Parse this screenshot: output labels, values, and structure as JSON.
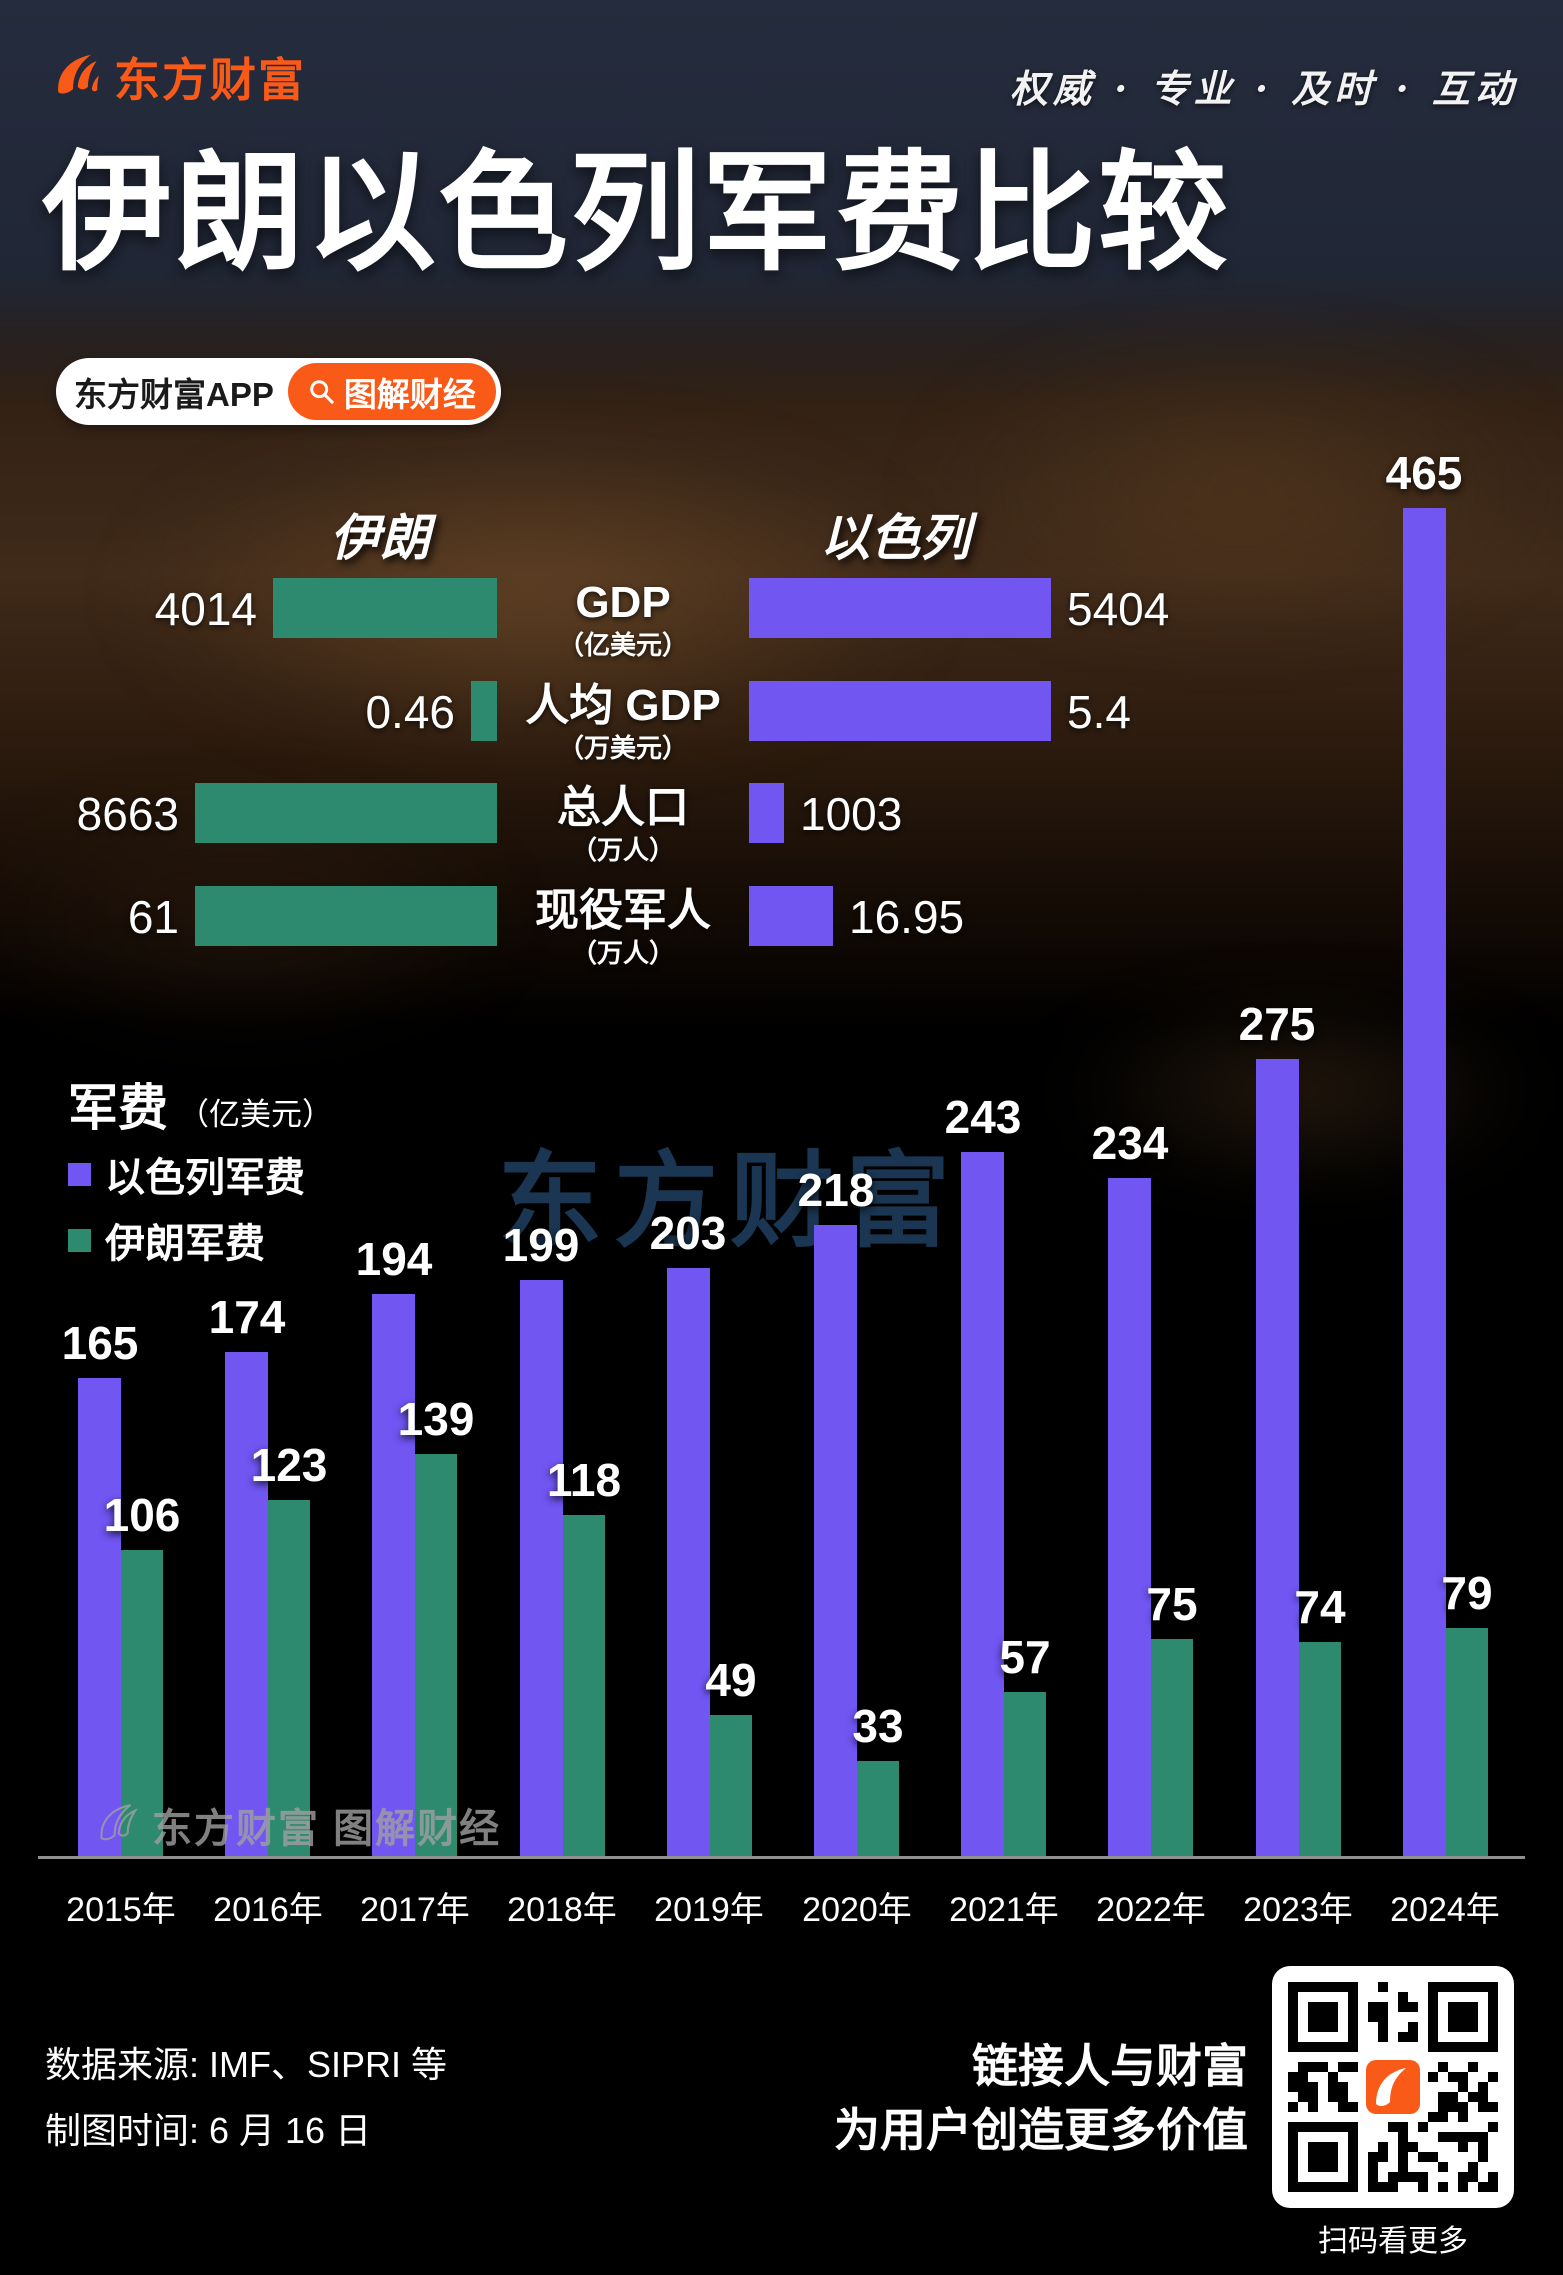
{
  "brand": {
    "logo_text": "东方财富",
    "tagline": "权威 · 专业 · 及时 · 互动",
    "app_pill": "东方财富APP",
    "pill_button": "图解财经",
    "watermark_center": "东方财富",
    "watermark_bottom": "东方财富 图解财经"
  },
  "title": "伊朗以色列军费比较",
  "comparison": {
    "iran_header": "伊朗",
    "israel_header": "以色列",
    "rows": [
      {
        "label": "GDP",
        "unit": "（亿美元）",
        "iran": 4014,
        "israel": 5404
      },
      {
        "label": "人均 GDP",
        "unit": "（万美元）",
        "iran": 0.46,
        "israel": 5.4
      },
      {
        "label": "总人口",
        "unit": "（万人）",
        "iran": 8663,
        "israel": 1003
      },
      {
        "label": "现役军人",
        "unit": "（万人）",
        "iran": 61,
        "israel": 16.95
      }
    ]
  },
  "chart_data": {
    "type": "bar",
    "title": "军费",
    "unit_label": "（亿美元）",
    "categories": [
      "2015年",
      "2016年",
      "2017年",
      "2018年",
      "2019年",
      "2020年",
      "2021年",
      "2022年",
      "2023年",
      "2024年"
    ],
    "series": [
      {
        "name": "以色列军费",
        "color": "#7156f2",
        "values": [
          165,
          174,
          194,
          199,
          203,
          218,
          243,
          234,
          275,
          465
        ]
      },
      {
        "name": "伊朗军费",
        "color": "#2e8a6e",
        "values": [
          106,
          123,
          139,
          118,
          49,
          33,
          57,
          75,
          74,
          79
        ]
      }
    ],
    "ylim": [
      0,
      465
    ],
    "grid": false,
    "legend_position": "top-left",
    "value_labels": true
  },
  "footer": {
    "source": "数据来源: IMF、SIPRI 等",
    "date": "制图时间: 6 月 16 日",
    "slogan_line1": "链接人与财富",
    "slogan_line2": "为用户创造更多价值",
    "qr_caption": "扫码看更多"
  },
  "colors": {
    "israel": "#7156f2",
    "iran": "#2e8a6e",
    "accent_orange": "#f95a18",
    "background_top": "#202635",
    "axis": "#8f8f8f",
    "watermark_blue": "#1d3b5a"
  }
}
